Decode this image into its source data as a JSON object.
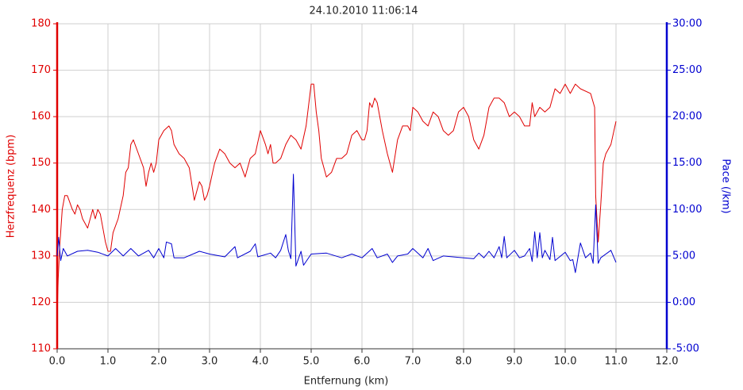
{
  "chart_data": {
    "type": "line",
    "title": "24.10.2010 11:06:14",
    "xlabel": "Entfernung (km)",
    "ylabel": "Herzfrequenz (bpm)",
    "y2label": "Pace (/km)",
    "xlim": [
      0,
      12
    ],
    "xticks": [
      {
        "value": 0,
        "label": "0.0"
      },
      {
        "value": 1,
        "label": "1.0"
      },
      {
        "value": 2,
        "label": "2.0"
      },
      {
        "value": 3,
        "label": "3.0"
      },
      {
        "value": 4,
        "label": "4.0"
      },
      {
        "value": 5,
        "label": "5.0"
      },
      {
        "value": 6,
        "label": "6.0"
      },
      {
        "value": 7,
        "label": "7.0"
      },
      {
        "value": 8,
        "label": "8.0"
      },
      {
        "value": 9,
        "label": "9.0"
      },
      {
        "value": 10,
        "label": "10.0"
      },
      {
        "value": 11,
        "label": "11.0"
      },
      {
        "value": 12,
        "label": "12.0"
      }
    ],
    "ylim": [
      110,
      180
    ],
    "yticks": [
      110,
      120,
      130,
      140,
      150,
      160,
      170,
      180
    ],
    "y2lim": [
      -5,
      30
    ],
    "y2ticks": [
      {
        "value": -5,
        "label": "-5:00"
      },
      {
        "value": 0,
        "label": "0:00"
      },
      {
        "value": 5,
        "label": "5:00"
      },
      {
        "value": 10,
        "label": "10:00"
      },
      {
        "value": 15,
        "label": "15:00"
      },
      {
        "value": 20,
        "label": "20:00"
      },
      {
        "value": 25,
        "label": "25:00"
      },
      {
        "value": 30,
        "label": "30:00"
      }
    ],
    "grid": true,
    "series": [
      {
        "name": "Herzfrequenz",
        "color": "#e00000",
        "axis": "y",
        "x": [
          0,
          0.02,
          0.05,
          0.1,
          0.15,
          0.2,
          0.3,
          0.35,
          0.4,
          0.45,
          0.5,
          0.6,
          0.7,
          0.75,
          0.8,
          0.85,
          0.9,
          0.95,
          1,
          1.05,
          1.1,
          1.2,
          1.3,
          1.35,
          1.4,
          1.45,
          1.5,
          1.6,
          1.7,
          1.75,
          1.8,
          1.85,
          1.9,
          1.95,
          2,
          2.1,
          2.2,
          2.25,
          2.3,
          2.4,
          2.5,
          2.6,
          2.7,
          2.75,
          2.8,
          2.85,
          2.9,
          2.95,
          3,
          3.1,
          3.2,
          3.3,
          3.4,
          3.5,
          3.6,
          3.7,
          3.8,
          3.9,
          4,
          4.1,
          4.15,
          4.2,
          4.25,
          4.3,
          4.4,
          4.5,
          4.6,
          4.7,
          4.8,
          4.9,
          5,
          5.05,
          5.1,
          5.15,
          5.2,
          5.3,
          5.4,
          5.5,
          5.6,
          5.7,
          5.8,
          5.9,
          6,
          6.05,
          6.1,
          6.15,
          6.2,
          6.25,
          6.3,
          6.4,
          6.5,
          6.6,
          6.7,
          6.8,
          6.9,
          6.95,
          7,
          7.1,
          7.2,
          7.3,
          7.4,
          7.5,
          7.6,
          7.7,
          7.8,
          7.9,
          8,
          8.1,
          8.2,
          8.3,
          8.4,
          8.5,
          8.6,
          8.7,
          8.8,
          8.9,
          9,
          9.1,
          9.2,
          9.3,
          9.35,
          9.4,
          9.5,
          9.6,
          9.7,
          9.8,
          9.9,
          10,
          10.1,
          10.2,
          10.3,
          10.5,
          10.58,
          10.6,
          10.65,
          10.7,
          10.75,
          10.8,
          10.9,
          11
        ],
        "values": [
          117,
          125,
          132,
          140,
          143,
          143,
          140,
          139,
          141,
          140,
          138,
          136,
          140,
          138,
          140,
          139,
          136,
          133,
          131,
          131,
          135,
          138,
          143,
          148,
          149,
          154,
          155,
          152,
          149,
          145,
          148,
          150,
          148,
          150,
          155,
          157,
          158,
          157,
          154,
          152,
          151,
          149,
          142,
          144,
          146,
          145,
          142,
          143,
          145,
          150,
          153,
          152,
          150,
          149,
          150,
          147,
          151,
          152,
          157,
          154,
          152,
          154,
          150,
          150,
          151,
          154,
          156,
          155,
          153,
          158,
          167,
          167,
          161,
          157,
          151,
          147,
          148,
          151,
          151,
          152,
          156,
          157,
          155,
          155,
          157,
          163,
          162,
          164,
          163,
          157,
          152,
          148,
          155,
          158,
          158,
          157,
          162,
          161,
          159,
          158,
          161,
          160,
          157,
          156,
          157,
          161,
          162,
          160,
          155,
          153,
          156,
          162,
          164,
          164,
          163,
          160,
          161,
          160,
          158,
          158,
          163,
          160,
          162,
          161,
          162,
          166,
          165,
          167,
          165,
          167,
          166,
          165,
          162,
          143,
          133,
          141,
          150,
          152,
          154,
          159
        ]
      },
      {
        "name": "Pace",
        "color": "#0000d0",
        "axis": "y2",
        "x": [
          0,
          0.03,
          0.07,
          0.12,
          0.2,
          0.4,
          0.6,
          0.8,
          1,
          1.15,
          1.3,
          1.45,
          1.6,
          1.8,
          1.9,
          2,
          2.1,
          2.15,
          2.25,
          2.3,
          2.5,
          2.8,
          3,
          3.3,
          3.5,
          3.55,
          3.8,
          3.9,
          3.95,
          4.2,
          4.3,
          4.4,
          4.5,
          4.55,
          4.6,
          4.65,
          4.7,
          4.8,
          4.85,
          5,
          5.3,
          5.6,
          5.8,
          6,
          6.2,
          6.3,
          6.5,
          6.6,
          6.7,
          6.9,
          7,
          7.2,
          7.3,
          7.4,
          7.6,
          8,
          8.2,
          8.3,
          8.4,
          8.5,
          8.6,
          8.7,
          8.75,
          8.8,
          8.85,
          9,
          9.1,
          9.2,
          9.3,
          9.35,
          9.4,
          9.45,
          9.5,
          9.55,
          9.6,
          9.7,
          9.75,
          9.8,
          10,
          10.1,
          10.15,
          10.2,
          10.3,
          10.4,
          10.5,
          10.55,
          10.6,
          10.65,
          10.7,
          10.9,
          11
        ],
        "values": [
          5,
          7,
          4.5,
          5.8,
          5,
          5.5,
          5.6,
          5.4,
          5,
          5.8,
          5,
          5.8,
          5,
          5.6,
          4.8,
          5.8,
          4.8,
          6.5,
          6.3,
          4.8,
          4.8,
          5.5,
          5.2,
          4.9,
          6,
          4.8,
          5.5,
          6.3,
          4.9,
          5.3,
          4.8,
          5.6,
          7.3,
          5.6,
          4.7,
          13.8,
          3.9,
          5.5,
          4,
          5.2,
          5.3,
          4.8,
          5.2,
          4.8,
          5.8,
          4.8,
          5.2,
          4.3,
          5,
          5.2,
          5.8,
          4.8,
          5.8,
          4.5,
          5,
          4.8,
          4.7,
          5.3,
          4.8,
          5.5,
          4.8,
          6,
          4.8,
          7.1,
          4.8,
          5.6,
          4.8,
          5,
          5.8,
          4.4,
          7.6,
          4.8,
          7.5,
          4.8,
          5.6,
          4.6,
          7,
          4.5,
          5.4,
          4.5,
          4.6,
          3.2,
          6.4,
          4.8,
          5.3,
          4.2,
          10.5,
          4.2,
          4.8,
          5.6,
          4.3
        ]
      }
    ]
  }
}
